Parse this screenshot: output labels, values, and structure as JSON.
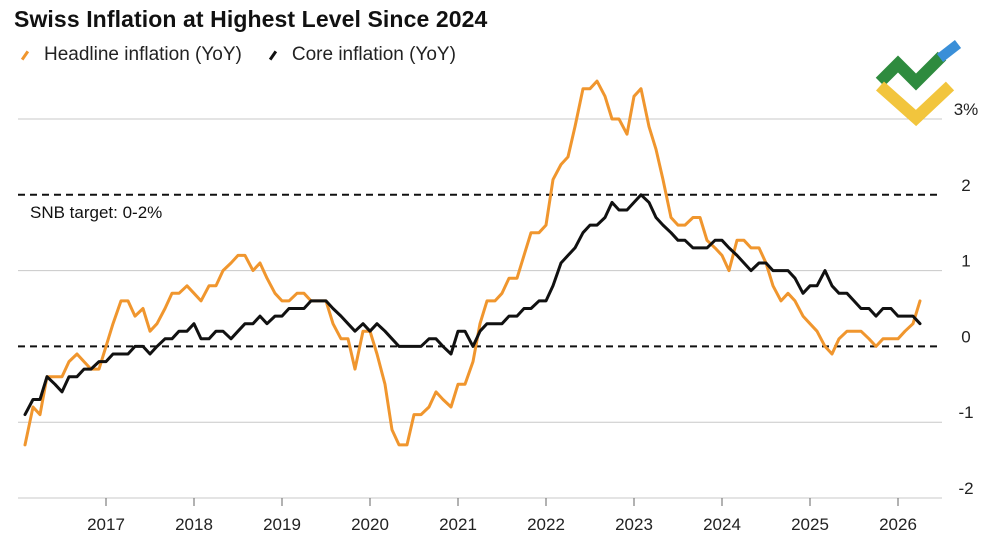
{
  "title": "Swiss Inflation at Highest Level Since 2024",
  "legend": [
    {
      "name": "Headline inflation (YoY)",
      "color": "#f0962e"
    },
    {
      "name": "Core inflation (YoY)",
      "color": "#111111"
    }
  ],
  "annotation": "SNB target: 0-2%",
  "logo_icon": "brand-logo-icon",
  "chart_data": {
    "type": "line",
    "xlabel": "",
    "ylabel": "",
    "xlim": [
      2016.0,
      2026.5
    ],
    "ylim": [
      -2,
      3
    ],
    "x_ticks": [
      2017,
      2018,
      2019,
      2020,
      2021,
      2022,
      2023,
      2024,
      2025,
      2026
    ],
    "y_ticks": [
      {
        "value": 3,
        "label": "3%"
      },
      {
        "value": 2,
        "label": "2"
      },
      {
        "value": 1,
        "label": "1"
      },
      {
        "value": 0,
        "label": "0"
      },
      {
        "value": -1,
        "label": "-1"
      },
      {
        "value": -2,
        "label": "-2"
      }
    ],
    "reference_lines": [
      {
        "y": 2,
        "style": "dashed"
      },
      {
        "y": 0,
        "style": "dashed"
      }
    ],
    "grid": true,
    "legend_position": "top-left",
    "series": [
      {
        "name": "Headline inflation (YoY)",
        "color": "#f0962e",
        "points": [
          [
            2016.08,
            -1.3
          ],
          [
            2016.17,
            -0.8
          ],
          [
            2016.25,
            -0.9
          ],
          [
            2016.33,
            -0.4
          ],
          [
            2016.42,
            -0.4
          ],
          [
            2016.5,
            -0.4
          ],
          [
            2016.58,
            -0.2
          ],
          [
            2016.67,
            -0.1
          ],
          [
            2016.75,
            -0.2
          ],
          [
            2016.83,
            -0.3
          ],
          [
            2016.92,
            -0.3
          ],
          [
            2017.0,
            0.0
          ],
          [
            2017.08,
            0.3
          ],
          [
            2017.17,
            0.6
          ],
          [
            2017.25,
            0.6
          ],
          [
            2017.33,
            0.4
          ],
          [
            2017.42,
            0.5
          ],
          [
            2017.5,
            0.2
          ],
          [
            2017.58,
            0.3
          ],
          [
            2017.67,
            0.5
          ],
          [
            2017.75,
            0.7
          ],
          [
            2017.83,
            0.7
          ],
          [
            2017.92,
            0.8
          ],
          [
            2018.0,
            0.7
          ],
          [
            2018.08,
            0.6
          ],
          [
            2018.17,
            0.8
          ],
          [
            2018.25,
            0.8
          ],
          [
            2018.33,
            1.0
          ],
          [
            2018.42,
            1.1
          ],
          [
            2018.5,
            1.2
          ],
          [
            2018.58,
            1.2
          ],
          [
            2018.67,
            1.0
          ],
          [
            2018.75,
            1.1
          ],
          [
            2018.83,
            0.9
          ],
          [
            2018.92,
            0.7
          ],
          [
            2019.0,
            0.6
          ],
          [
            2019.08,
            0.6
          ],
          [
            2019.17,
            0.7
          ],
          [
            2019.25,
            0.7
          ],
          [
            2019.33,
            0.6
          ],
          [
            2019.42,
            0.6
          ],
          [
            2019.5,
            0.6
          ],
          [
            2019.58,
            0.3
          ],
          [
            2019.67,
            0.1
          ],
          [
            2019.75,
            0.1
          ],
          [
            2019.83,
            -0.3
          ],
          [
            2019.92,
            0.2
          ],
          [
            2020.0,
            0.2
          ],
          [
            2020.08,
            -0.1
          ],
          [
            2020.17,
            -0.5
          ],
          [
            2020.25,
            -1.1
          ],
          [
            2020.33,
            -1.3
          ],
          [
            2020.42,
            -1.3
          ],
          [
            2020.5,
            -0.9
          ],
          [
            2020.58,
            -0.9
          ],
          [
            2020.67,
            -0.8
          ],
          [
            2020.75,
            -0.6
          ],
          [
            2020.83,
            -0.7
          ],
          [
            2020.92,
            -0.8
          ],
          [
            2021.0,
            -0.5
          ],
          [
            2021.08,
            -0.5
          ],
          [
            2021.17,
            -0.2
          ],
          [
            2021.25,
            0.3
          ],
          [
            2021.33,
            0.6
          ],
          [
            2021.42,
            0.6
          ],
          [
            2021.5,
            0.7
          ],
          [
            2021.58,
            0.9
          ],
          [
            2021.67,
            0.9
          ],
          [
            2021.75,
            1.2
          ],
          [
            2021.83,
            1.5
          ],
          [
            2021.92,
            1.5
          ],
          [
            2022.0,
            1.6
          ],
          [
            2022.08,
            2.2
          ],
          [
            2022.17,
            2.4
          ],
          [
            2022.25,
            2.5
          ],
          [
            2022.33,
            2.9
          ],
          [
            2022.42,
            3.4
          ],
          [
            2022.5,
            3.4
          ],
          [
            2022.58,
            3.5
          ],
          [
            2022.67,
            3.3
          ],
          [
            2022.75,
            3.0
          ],
          [
            2022.83,
            3.0
          ],
          [
            2022.92,
            2.8
          ],
          [
            2023.0,
            3.3
          ],
          [
            2023.08,
            3.4
          ],
          [
            2023.17,
            2.9
          ],
          [
            2023.25,
            2.6
          ],
          [
            2023.33,
            2.2
          ],
          [
            2023.42,
            1.7
          ],
          [
            2023.5,
            1.6
          ],
          [
            2023.58,
            1.6
          ],
          [
            2023.67,
            1.7
          ],
          [
            2023.75,
            1.7
          ],
          [
            2023.83,
            1.4
          ],
          [
            2023.92,
            1.3
          ],
          [
            2024.0,
            1.2
          ],
          [
            2024.08,
            1.0
          ],
          [
            2024.17,
            1.4
          ],
          [
            2024.25,
            1.4
          ],
          [
            2024.33,
            1.3
          ],
          [
            2024.42,
            1.3
          ],
          [
            2024.5,
            1.1
          ],
          [
            2024.58,
            0.8
          ],
          [
            2024.67,
            0.6
          ],
          [
            2024.75,
            0.7
          ],
          [
            2024.83,
            0.6
          ],
          [
            2024.92,
            0.4
          ],
          [
            2025.0,
            0.3
          ],
          [
            2025.08,
            0.2
          ],
          [
            2025.17,
            0.0
          ],
          [
            2025.25,
            -0.1
          ],
          [
            2025.33,
            0.1
          ],
          [
            2025.42,
            0.2
          ],
          [
            2025.5,
            0.2
          ],
          [
            2025.58,
            0.2
          ],
          [
            2025.67,
            0.1
          ],
          [
            2025.75,
            0.0
          ],
          [
            2025.83,
            0.1
          ],
          [
            2025.92,
            0.1
          ],
          [
            2026.0,
            0.1
          ],
          [
            2026.08,
            0.2
          ],
          [
            2026.17,
            0.3
          ],
          [
            2026.25,
            0.6
          ]
        ]
      },
      {
        "name": "Core inflation (YoY)",
        "color": "#111111",
        "points": [
          [
            2016.08,
            -0.9
          ],
          [
            2016.17,
            -0.7
          ],
          [
            2016.25,
            -0.7
          ],
          [
            2016.33,
            -0.4
          ],
          [
            2016.42,
            -0.5
          ],
          [
            2016.5,
            -0.6
          ],
          [
            2016.58,
            -0.4
          ],
          [
            2016.67,
            -0.4
          ],
          [
            2016.75,
            -0.3
          ],
          [
            2016.83,
            -0.3
          ],
          [
            2016.92,
            -0.2
          ],
          [
            2017.0,
            -0.2
          ],
          [
            2017.08,
            -0.1
          ],
          [
            2017.17,
            -0.1
          ],
          [
            2017.25,
            -0.1
          ],
          [
            2017.33,
            0.0
          ],
          [
            2017.42,
            0.0
          ],
          [
            2017.5,
            -0.1
          ],
          [
            2017.58,
            0.0
          ],
          [
            2017.67,
            0.1
          ],
          [
            2017.75,
            0.1
          ],
          [
            2017.83,
            0.2
          ],
          [
            2017.92,
            0.2
          ],
          [
            2018.0,
            0.3
          ],
          [
            2018.08,
            0.1
          ],
          [
            2018.17,
            0.1
          ],
          [
            2018.25,
            0.2
          ],
          [
            2018.33,
            0.2
          ],
          [
            2018.42,
            0.1
          ],
          [
            2018.5,
            0.2
          ],
          [
            2018.58,
            0.3
          ],
          [
            2018.67,
            0.3
          ],
          [
            2018.75,
            0.4
          ],
          [
            2018.83,
            0.3
          ],
          [
            2018.92,
            0.4
          ],
          [
            2019.0,
            0.4
          ],
          [
            2019.08,
            0.5
          ],
          [
            2019.17,
            0.5
          ],
          [
            2019.25,
            0.5
          ],
          [
            2019.33,
            0.6
          ],
          [
            2019.42,
            0.6
          ],
          [
            2019.5,
            0.6
          ],
          [
            2019.58,
            0.5
          ],
          [
            2019.67,
            0.4
          ],
          [
            2019.75,
            0.3
          ],
          [
            2019.83,
            0.2
          ],
          [
            2019.92,
            0.3
          ],
          [
            2020.0,
            0.2
          ],
          [
            2020.08,
            0.3
          ],
          [
            2020.17,
            0.2
          ],
          [
            2020.25,
            0.1
          ],
          [
            2020.33,
            0.0
          ],
          [
            2020.42,
            0.0
          ],
          [
            2020.5,
            0.0
          ],
          [
            2020.58,
            0.0
          ],
          [
            2020.67,
            0.1
          ],
          [
            2020.75,
            0.1
          ],
          [
            2020.83,
            0.0
          ],
          [
            2020.92,
            -0.1
          ],
          [
            2021.0,
            0.2
          ],
          [
            2021.08,
            0.2
          ],
          [
            2021.17,
            0.0
          ],
          [
            2021.25,
            0.2
          ],
          [
            2021.33,
            0.3
          ],
          [
            2021.42,
            0.3
          ],
          [
            2021.5,
            0.3
          ],
          [
            2021.58,
            0.4
          ],
          [
            2021.67,
            0.4
          ],
          [
            2021.75,
            0.5
          ],
          [
            2021.83,
            0.5
          ],
          [
            2021.92,
            0.6
          ],
          [
            2022.0,
            0.6
          ],
          [
            2022.08,
            0.8
          ],
          [
            2022.17,
            1.1
          ],
          [
            2022.25,
            1.2
          ],
          [
            2022.33,
            1.3
          ],
          [
            2022.42,
            1.5
          ],
          [
            2022.5,
            1.6
          ],
          [
            2022.58,
            1.6
          ],
          [
            2022.67,
            1.7
          ],
          [
            2022.75,
            1.9
          ],
          [
            2022.83,
            1.8
          ],
          [
            2022.92,
            1.8
          ],
          [
            2023.0,
            1.9
          ],
          [
            2023.08,
            2.0
          ],
          [
            2023.17,
            1.9
          ],
          [
            2023.25,
            1.7
          ],
          [
            2023.33,
            1.6
          ],
          [
            2023.42,
            1.5
          ],
          [
            2023.5,
            1.4
          ],
          [
            2023.58,
            1.4
          ],
          [
            2023.67,
            1.3
          ],
          [
            2023.75,
            1.3
          ],
          [
            2023.83,
            1.3
          ],
          [
            2023.92,
            1.4
          ],
          [
            2024.0,
            1.4
          ],
          [
            2024.08,
            1.3
          ],
          [
            2024.17,
            1.2
          ],
          [
            2024.25,
            1.1
          ],
          [
            2024.33,
            1.0
          ],
          [
            2024.42,
            1.1
          ],
          [
            2024.5,
            1.1
          ],
          [
            2024.58,
            1.0
          ],
          [
            2024.67,
            1.0
          ],
          [
            2024.75,
            1.0
          ],
          [
            2024.83,
            0.9
          ],
          [
            2024.92,
            0.7
          ],
          [
            2025.0,
            0.8
          ],
          [
            2025.08,
            0.8
          ],
          [
            2025.17,
            1.0
          ],
          [
            2025.25,
            0.8
          ],
          [
            2025.33,
            0.7
          ],
          [
            2025.42,
            0.7
          ],
          [
            2025.5,
            0.6
          ],
          [
            2025.58,
            0.5
          ],
          [
            2025.67,
            0.5
          ],
          [
            2025.75,
            0.4
          ],
          [
            2025.83,
            0.5
          ],
          [
            2025.92,
            0.5
          ],
          [
            2026.0,
            0.4
          ],
          [
            2026.08,
            0.4
          ],
          [
            2026.17,
            0.4
          ],
          [
            2026.25,
            0.3
          ]
        ]
      }
    ]
  }
}
